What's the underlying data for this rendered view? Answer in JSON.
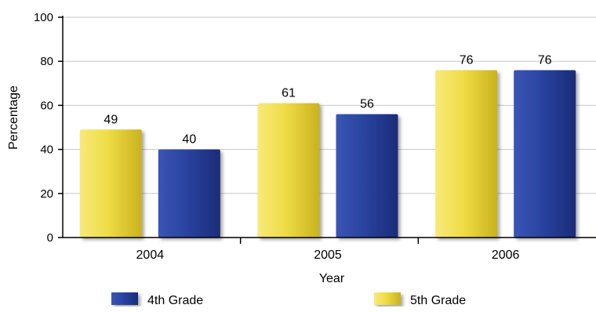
{
  "chart_data": {
    "type": "bar",
    "categories": [
      "2004",
      "2005",
      "2006"
    ],
    "series": [
      {
        "name": "5th Grade",
        "color": "#e8d23a",
        "values": [
          49,
          61,
          76
        ]
      },
      {
        "name": "4th Grade",
        "color": "#283f96",
        "values": [
          40,
          56,
          76
        ]
      }
    ],
    "xlabel": "Year",
    "ylabel": "Percentage",
    "ylim": [
      0,
      100
    ],
    "yticks": [
      "0",
      "20",
      "40",
      "60",
      "80",
      "100"
    ],
    "grid": true,
    "legend": {
      "placement": "bottom",
      "entries": [
        {
          "label": "4th Grade",
          "color": "#283f96"
        },
        {
          "label": "5th Grade",
          "color": "#e8d23a"
        }
      ]
    }
  }
}
